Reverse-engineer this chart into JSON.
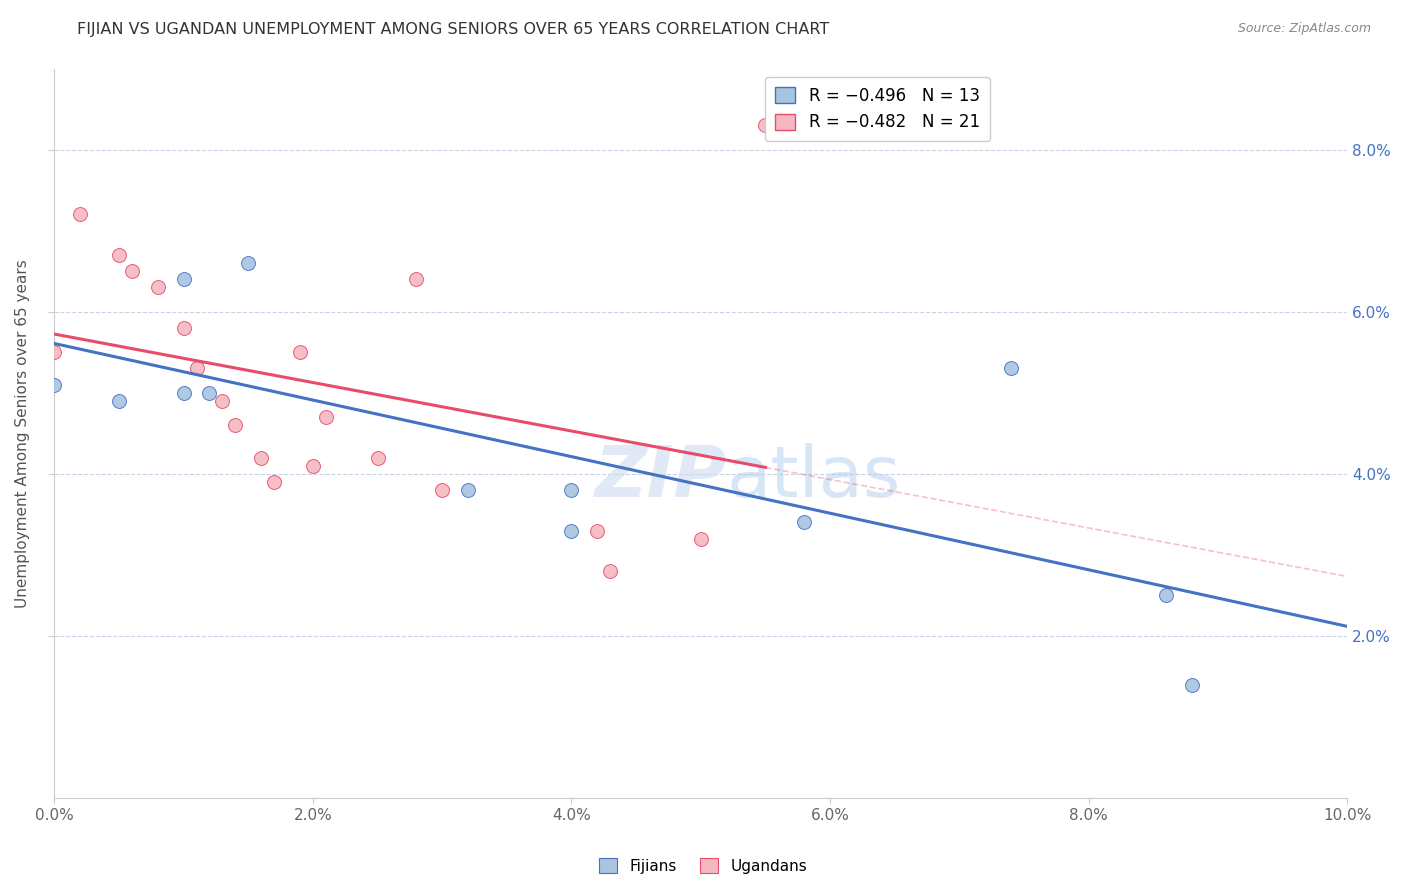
{
  "title": "FIJIAN VS UGANDAN UNEMPLOYMENT AMONG SENIORS OVER 65 YEARS CORRELATION CHART",
  "source": "Source: ZipAtlas.com",
  "ylabel": "Unemployment Among Seniors over 65 years",
  "xlim": [
    0.0,
    0.1
  ],
  "ylim": [
    0.0,
    0.09
  ],
  "xticks": [
    0.0,
    0.02,
    0.04,
    0.06,
    0.08,
    0.1
  ],
  "yticks": [
    0.02,
    0.04,
    0.06,
    0.08
  ],
  "fijian_x": [
    0.0,
    0.005,
    0.01,
    0.01,
    0.012,
    0.015,
    0.032,
    0.04,
    0.04,
    0.058,
    0.074,
    0.086,
    0.088
  ],
  "fijian_y": [
    0.051,
    0.049,
    0.05,
    0.064,
    0.05,
    0.066,
    0.038,
    0.038,
    0.033,
    0.034,
    0.053,
    0.025,
    0.014
  ],
  "ugandan_x": [
    0.0,
    0.002,
    0.005,
    0.006,
    0.008,
    0.01,
    0.011,
    0.013,
    0.014,
    0.016,
    0.017,
    0.019,
    0.02,
    0.021,
    0.025,
    0.028,
    0.03,
    0.042,
    0.043,
    0.05,
    0.055
  ],
  "ugandan_y": [
    0.055,
    0.072,
    0.067,
    0.065,
    0.063,
    0.058,
    0.053,
    0.049,
    0.046,
    0.042,
    0.039,
    0.055,
    0.041,
    0.047,
    0.042,
    0.064,
    0.038,
    0.033,
    0.028,
    0.032,
    0.083
  ],
  "fijian_color": "#a8c4e0",
  "ugandan_color": "#f4b8c1",
  "fijian_line_color": "#4472c4",
  "ugandan_line_color": "#e84c6a",
  "legend_fijian_R": "R = −0.496",
  "legend_fijian_N": "N = 13",
  "legend_ugandan_R": "R = −0.482",
  "legend_ugandan_N": "N = 21",
  "legend_label_fijian": "Fijians",
  "legend_label_ugandan": "Ugandans",
  "watermark_zip": "ZIP",
  "watermark_atlas": "atlas",
  "background_color": "#ffffff",
  "grid_color": "#c8d4e8",
  "marker_size": 100
}
